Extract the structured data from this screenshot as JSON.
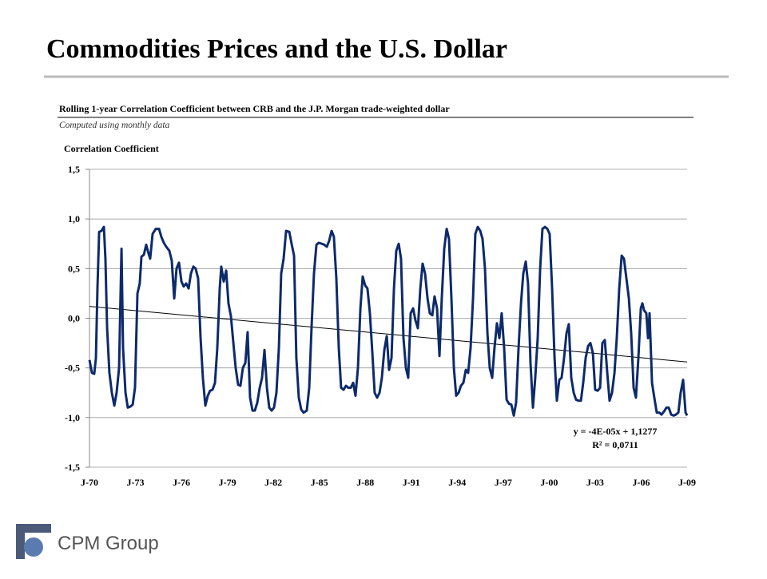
{
  "chart_data": {
    "type": "line",
    "title": "Commodities Prices and the U.S. Dollar",
    "subtitle": "Rolling 1-year Correlation Coefficient between CRB and the J.P. Morgan trade-weighted dollar",
    "note": "Computed using monthly data",
    "y_label": "Correlation Coefficient",
    "annotations": [
      "y = -4E-05x + 1,1277",
      "R² = 0,0711"
    ],
    "logo": "CPM Group",
    "xlim": [
      1970,
      2009
    ],
    "xticks": [
      {
        "value": 1970,
        "label": "J-70"
      },
      {
        "value": 1973,
        "label": "J-73"
      },
      {
        "value": 1976,
        "label": "J-76"
      },
      {
        "value": 1979,
        "label": "J-79"
      },
      {
        "value": 1982,
        "label": "J-82"
      },
      {
        "value": 1985,
        "label": "J-85"
      },
      {
        "value": 1988,
        "label": "J-88"
      },
      {
        "value": 1991,
        "label": "J-91"
      },
      {
        "value": 1994,
        "label": "J-94"
      },
      {
        "value": 1997,
        "label": "J-97"
      },
      {
        "value": 2000,
        "label": "J-00"
      },
      {
        "value": 2003,
        "label": "J-03"
      },
      {
        "value": 2006,
        "label": "J-06"
      },
      {
        "value": 2009,
        "label": "J-09"
      }
    ],
    "ylim": [
      -1.5,
      1.5
    ],
    "yticks": [
      {
        "value": -1.5,
        "label": "-1,5"
      },
      {
        "value": -1.0,
        "label": "-1,0"
      },
      {
        "value": -0.5,
        "label": "-0,5"
      },
      {
        "value": 0.0,
        "label": "0,0"
      },
      {
        "value": 0.5,
        "label": "0,5"
      },
      {
        "value": 1.0,
        "label": "1,0"
      },
      {
        "value": 1.5,
        "label": "1,5"
      }
    ],
    "grid": true,
    "series": [
      {
        "color": "#0d2a6b",
        "x": [
          1970.0,
          1970.16,
          1970.31,
          1970.42,
          1970.52,
          1970.63,
          1970.78,
          1970.94,
          1971.04,
          1971.15,
          1971.3,
          1971.46,
          1971.62,
          1971.77,
          1971.93,
          1972.09,
          1972.19,
          1972.35,
          1972.5,
          1972.66,
          1972.82,
          1972.97,
          1973.13,
          1973.28,
          1973.39,
          1973.55,
          1973.7,
          1973.86,
          1973.96,
          1974.12,
          1974.33,
          1974.54,
          1974.69,
          1974.85,
          1975.01,
          1975.21,
          1975.37,
          1975.53,
          1975.68,
          1975.84,
          1976.0,
          1976.15,
          1976.31,
          1976.47,
          1976.62,
          1976.78,
          1976.93,
          1977.09,
          1977.25,
          1977.4,
          1977.56,
          1977.72,
          1977.87,
          1978.03,
          1978.19,
          1978.34,
          1978.5,
          1978.6,
          1978.76,
          1978.92,
          1979.07,
          1979.23,
          1979.39,
          1979.54,
          1979.7,
          1979.85,
          1980.01,
          1980.17,
          1980.32,
          1980.48,
          1980.64,
          1980.79,
          1980.95,
          1981.11,
          1981.26,
          1981.42,
          1981.58,
          1981.73,
          1981.89,
          1982.04,
          1982.2,
          1982.36,
          1982.51,
          1982.67,
          1982.83,
          1983.04,
          1983.19,
          1983.35,
          1983.5,
          1983.66,
          1983.82,
          1983.97,
          1984.18,
          1984.34,
          1984.49,
          1984.65,
          1984.81,
          1984.96,
          1985.17,
          1985.33,
          1985.49,
          1985.64,
          1985.8,
          1985.95,
          1986.11,
          1986.27,
          1986.42,
          1986.58,
          1986.74,
          1986.89,
          1987.05,
          1987.21,
          1987.36,
          1987.52,
          1987.68,
          1987.83,
          1987.99,
          1988.14,
          1988.3,
          1988.46,
          1988.61,
          1988.77,
          1988.93,
          1989.08,
          1989.24,
          1989.4,
          1989.55,
          1989.71,
          1989.87,
          1990.02,
          1990.18,
          1990.33,
          1990.49,
          1990.65,
          1990.8,
          1990.96,
          1991.12,
          1991.27,
          1991.43,
          1991.59,
          1991.74,
          1991.9,
          1992.06,
          1992.21,
          1992.37,
          1992.52,
          1992.68,
          1992.84,
          1992.99,
          1993.15,
          1993.31,
          1993.46,
          1993.62,
          1993.78,
          1993.93,
          1994.09,
          1994.24,
          1994.4,
          1994.56,
          1994.71,
          1994.87,
          1995.03,
          1995.18,
          1995.34,
          1995.5,
          1995.65,
          1995.81,
          1995.97,
          1996.12,
          1996.28,
          1996.43,
          1996.59,
          1996.75,
          1996.9,
          1997.06,
          1997.22,
          1997.37,
          1997.53,
          1997.69,
          1997.84,
          1998.0,
          1998.16,
          1998.31,
          1998.47,
          1998.62,
          1998.78,
          1998.94,
          1999.09,
          1999.25,
          1999.41,
          1999.56,
          1999.72,
          1999.88,
          2000.03,
          2000.19,
          2000.35,
          2000.5,
          2000.66,
          2000.81,
          2000.97,
          2001.13,
          2001.28,
          2001.44,
          2001.6,
          2001.75,
          2001.91,
          2002.07,
          2002.22,
          2002.38,
          2002.54,
          2002.69,
          2002.85,
          2003.0,
          2003.16,
          2003.32,
          2003.47,
          2003.63,
          2003.79,
          2003.94,
          2004.1,
          2004.26,
          2004.41,
          2004.57,
          2004.73,
          2004.88,
          2005.04,
          2005.2,
          2005.35,
          2005.51,
          2005.66,
          2005.82,
          2005.98,
          2006.08,
          2006.19,
          2006.34,
          2006.45,
          2006.55,
          2006.71,
          2006.86,
          2007.02,
          2007.18,
          2007.33,
          2007.49,
          2007.65,
          2007.8,
          2007.96,
          2008.12,
          2008.27,
          2008.43,
          2008.58,
          2008.74,
          2008.9,
          2009.0
        ],
        "values": [
          -0.42,
          -0.55,
          -0.56,
          -0.4,
          0.3,
          0.87,
          0.88,
          0.92,
          0.6,
          -0.1,
          -0.55,
          -0.75,
          -0.88,
          -0.75,
          -0.5,
          0.7,
          -0.3,
          -0.75,
          -0.9,
          -0.89,
          -0.87,
          -0.7,
          0.25,
          0.35,
          0.62,
          0.64,
          0.74,
          0.65,
          0.6,
          0.85,
          0.9,
          0.9,
          0.82,
          0.76,
          0.72,
          0.68,
          0.58,
          0.2,
          0.5,
          0.56,
          0.37,
          0.32,
          0.35,
          0.3,
          0.45,
          0.52,
          0.5,
          0.4,
          -0.2,
          -0.6,
          -0.88,
          -0.78,
          -0.73,
          -0.72,
          -0.65,
          -0.3,
          0.3,
          0.52,
          0.37,
          0.48,
          0.15,
          0.02,
          -0.25,
          -0.5,
          -0.67,
          -0.68,
          -0.5,
          -0.45,
          -0.14,
          -0.8,
          -0.93,
          -0.93,
          -0.85,
          -0.7,
          -0.6,
          -0.32,
          -0.7,
          -0.9,
          -0.93,
          -0.9,
          -0.75,
          -0.3,
          0.45,
          0.6,
          0.88,
          0.87,
          0.75,
          0.63,
          -0.4,
          -0.8,
          -0.92,
          -0.95,
          -0.93,
          -0.7,
          -0.1,
          0.45,
          0.74,
          0.76,
          0.75,
          0.74,
          0.72,
          0.78,
          0.88,
          0.82,
          0.4,
          -0.3,
          -0.7,
          -0.72,
          -0.68,
          -0.7,
          -0.7,
          -0.65,
          -0.78,
          -0.5,
          0.1,
          0.42,
          0.33,
          0.3,
          0.05,
          -0.35,
          -0.75,
          -0.8,
          -0.75,
          -0.6,
          -0.32,
          -0.18,
          -0.52,
          -0.4,
          0.3,
          0.68,
          0.75,
          0.6,
          -0.2,
          -0.5,
          -0.6,
          0.05,
          0.1,
          -0.02,
          -0.1,
          0.3,
          0.55,
          0.45,
          0.2,
          0.05,
          0.03,
          0.22,
          0.1,
          -0.38,
          0.2,
          0.7,
          0.9,
          0.8,
          0.2,
          -0.5,
          -0.78,
          -0.75,
          -0.68,
          -0.65,
          -0.52,
          -0.55,
          -0.3,
          0.2,
          0.85,
          0.92,
          0.88,
          0.8,
          0.5,
          -0.15,
          -0.5,
          -0.6,
          -0.3,
          -0.05,
          -0.2,
          0.05,
          -0.3,
          -0.82,
          -0.86,
          -0.87,
          -0.98,
          -0.85,
          -0.3,
          0.15,
          0.45,
          0.57,
          0.35,
          -0.45,
          -0.9,
          -0.6,
          -0.2,
          0.5,
          0.9,
          0.92,
          0.9,
          0.85,
          0.3,
          -0.4,
          -0.83,
          -0.62,
          -0.6,
          -0.4,
          -0.15,
          -0.06,
          -0.6,
          -0.75,
          -0.82,
          -0.83,
          -0.83,
          -0.65,
          -0.4,
          -0.28,
          -0.25,
          -0.35,
          -0.72,
          -0.73,
          -0.7,
          -0.25,
          -0.22,
          -0.55,
          -0.83,
          -0.75,
          -0.55,
          -0.2,
          0.3,
          0.63,
          0.6,
          0.4,
          0.2,
          -0.15,
          -0.7,
          -0.8,
          -0.4,
          0.1,
          0.15,
          0.08,
          0.05,
          -0.2,
          0.05,
          -0.65,
          -0.8,
          -0.95,
          -0.95,
          -0.97,
          -0.94,
          -0.9,
          -0.9,
          -0.97,
          -0.98,
          -0.97,
          -0.95,
          -0.75,
          -0.62,
          -0.95,
          -0.98
        ]
      }
    ],
    "trendline": {
      "color": "#000000",
      "x": [
        1970,
        2009
      ],
      "values": [
        0.12,
        -0.44
      ]
    }
  }
}
